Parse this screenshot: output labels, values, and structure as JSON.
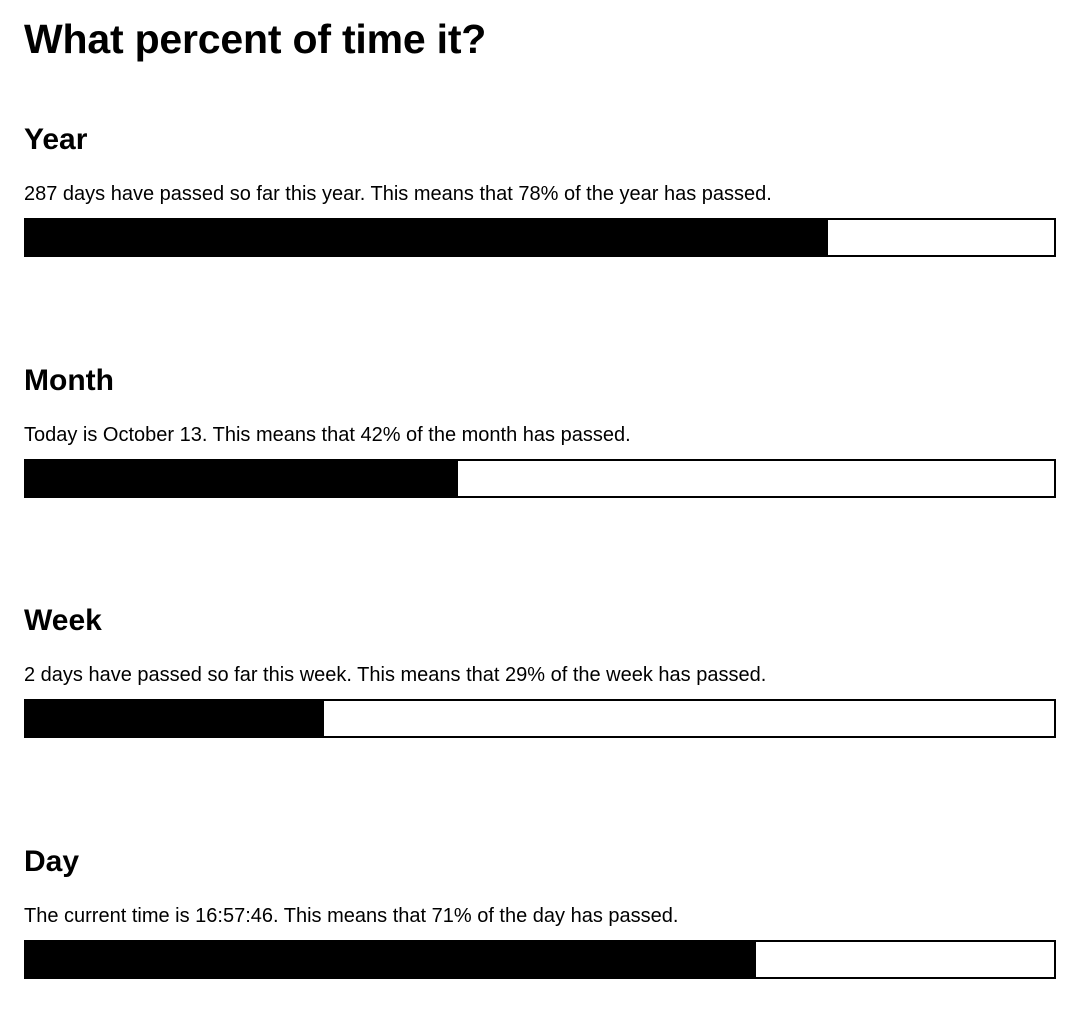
{
  "title": "What percent of time it?",
  "colors": {
    "bar_fill": "#000000",
    "bar_track": "#ffffff",
    "text": "#000000",
    "background": "#ffffff"
  },
  "sections": [
    {
      "heading": "Year",
      "text": "287 days have passed so far this year. This means that 78% of the year has passed.",
      "progress_percent": 78
    },
    {
      "heading": "Month",
      "text": "Today is October 13. This means that 42% of the month has passed.",
      "progress_percent": 42
    },
    {
      "heading": "Week",
      "text": "2 days have passed so far this week. This means that 29% of the week has passed.",
      "progress_percent": 29
    },
    {
      "heading": "Day",
      "text": "The current time is 16:57:46. This means that 71% of the day has passed.",
      "progress_percent": 71
    }
  ]
}
